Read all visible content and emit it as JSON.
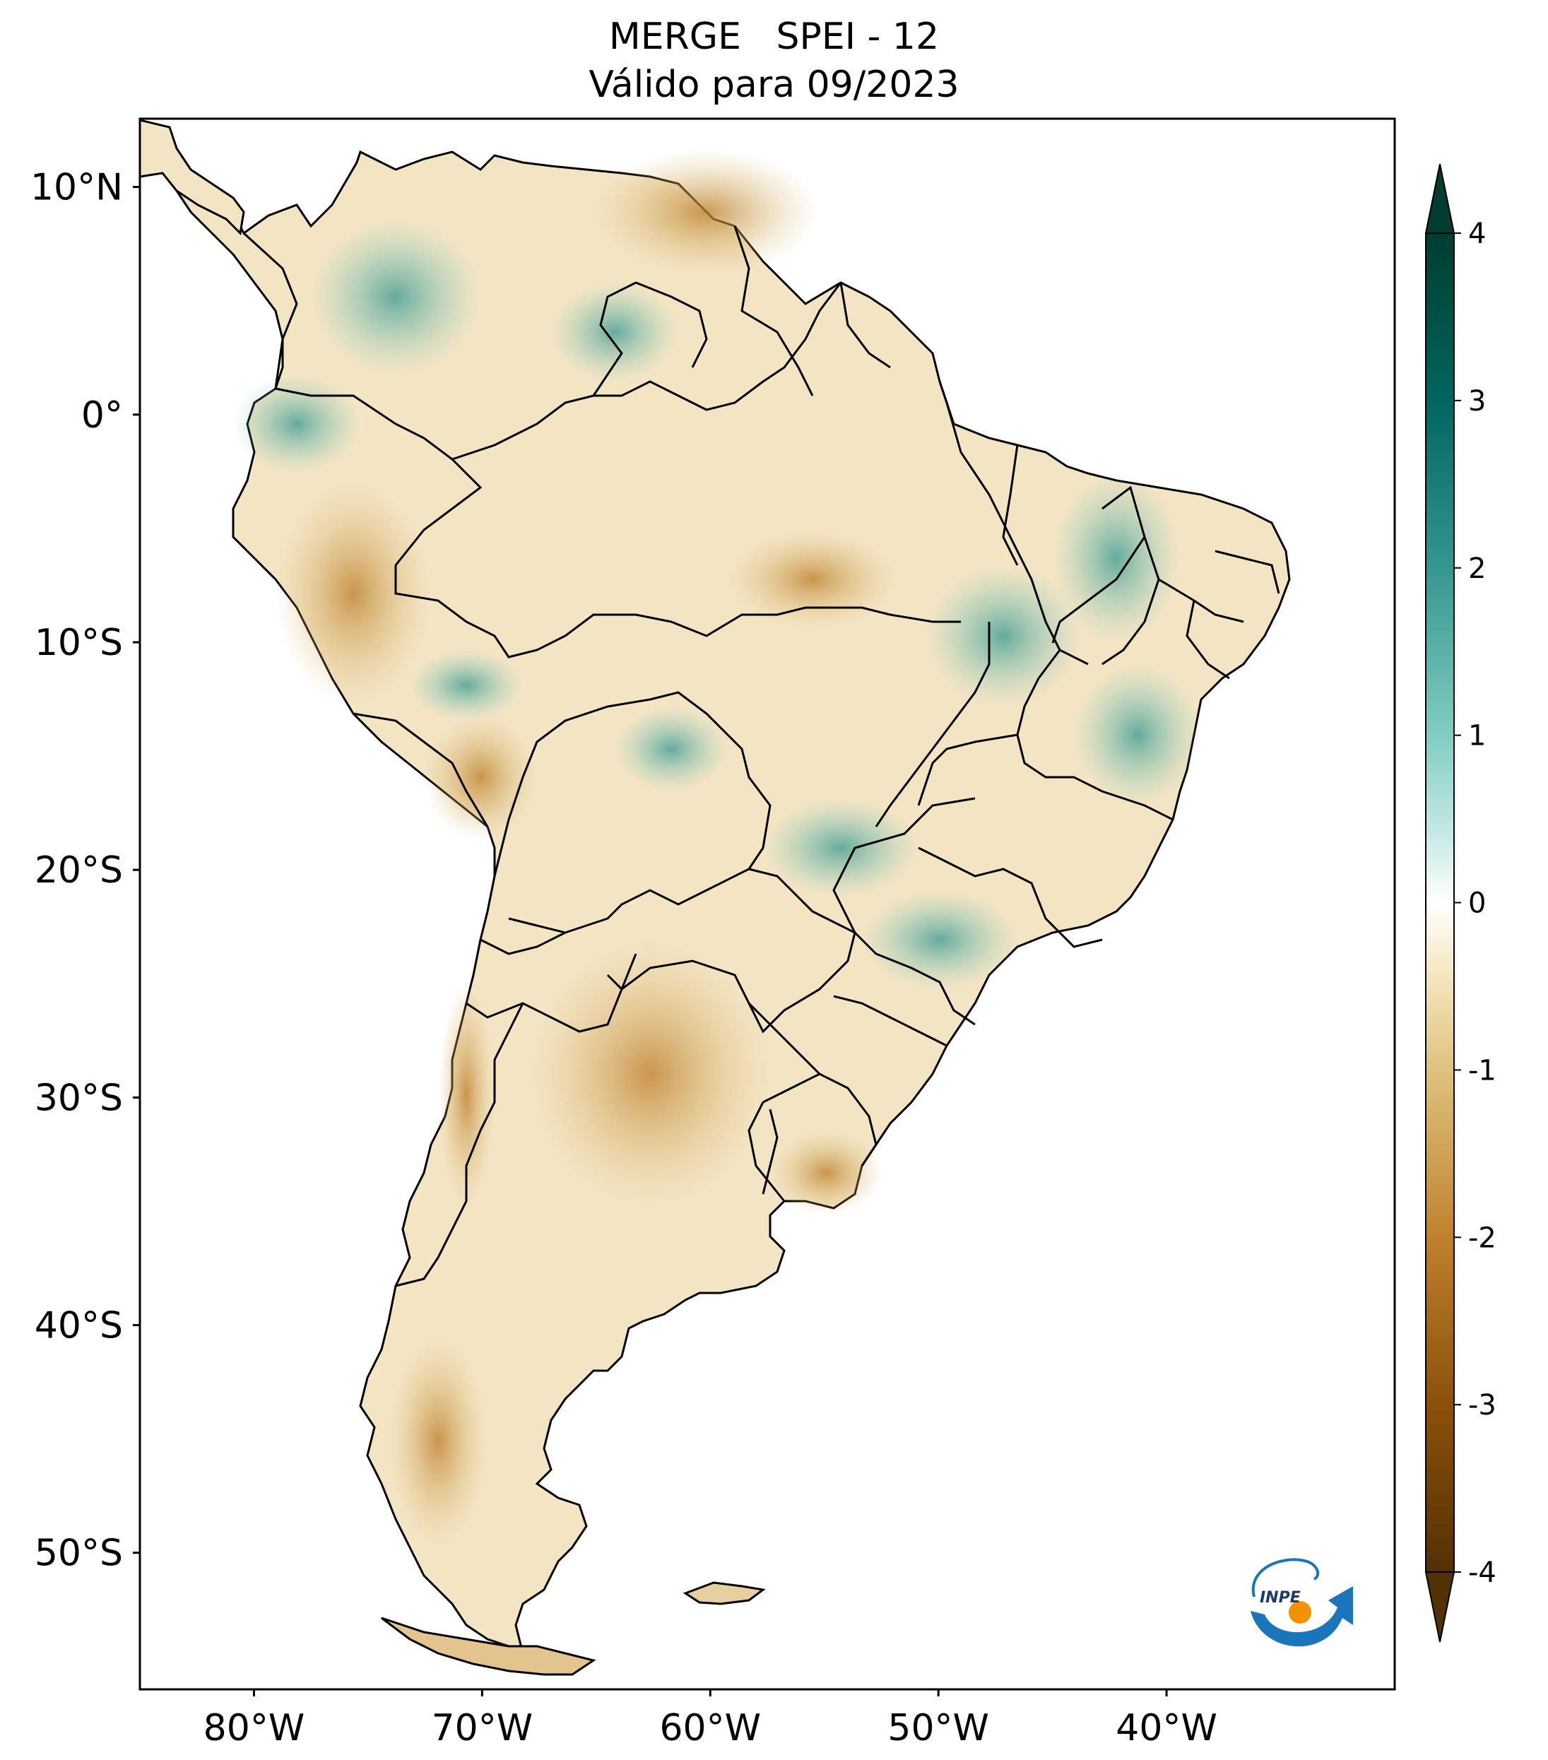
{
  "title": {
    "line1": "MERGE   SPEI - 12",
    "line2": "Válido para 09/2023"
  },
  "axes": {
    "lat_ticks": [
      "10°N",
      "0°",
      "10°S",
      "20°S",
      "30°S",
      "40°S",
      "50°S"
    ],
    "lon_ticks": [
      "80°W",
      "70°W",
      "60°W",
      "50°W",
      "40°W"
    ],
    "lat_values": [
      10,
      0,
      -10,
      -20,
      -30,
      -40,
      -50
    ],
    "lon_values": [
      -80,
      -70,
      -60,
      -50,
      -40
    ],
    "extent": {
      "lon_min": -85,
      "lon_max": -30,
      "lat_min": -56,
      "lat_max": 13
    }
  },
  "colorbar": {
    "labels": [
      "4",
      "3",
      "2",
      "1",
      "0",
      "-1",
      "-2",
      "-3",
      "-4"
    ],
    "values": [
      4,
      3,
      2,
      1,
      0,
      -1,
      -2,
      -3,
      -4
    ],
    "range": [
      -4,
      4
    ],
    "extend": "both",
    "colormap": "BrBG",
    "colors": {
      "max": "#003c30",
      "high": "#35978f",
      "mid_high": "#c7eae5",
      "zero": "#ffffff",
      "mid_low": "#f6e8c3",
      "low": "#bf812d",
      "min": "#543005"
    }
  },
  "logo": {
    "text": "INPE"
  }
}
